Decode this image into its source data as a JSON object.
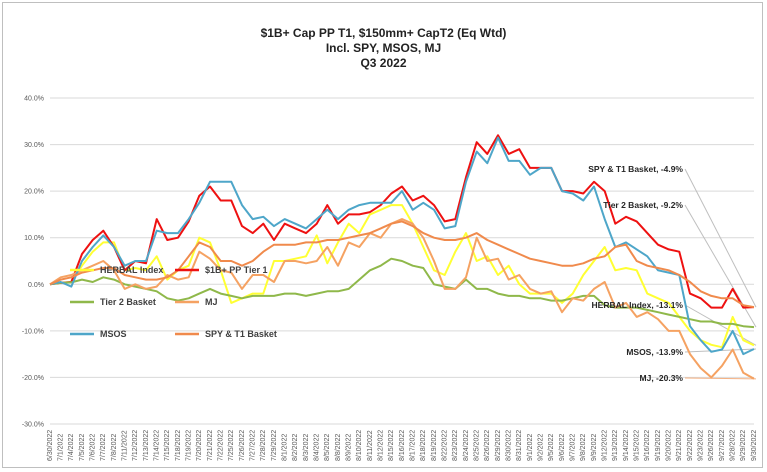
{
  "chart_data": {
    "type": "line",
    "title_lines": [
      "$1B+ Cap PP T1, $150mm+ CapT2  (Eq Wtd)",
      "Incl. SPY, MSOS, MJ",
      "Q3 2022"
    ],
    "ylim": [
      -30,
      40
    ],
    "y_ticks": [
      "-30.0%",
      "-20.0%",
      "-10.0%",
      "0.0%",
      "10.0%",
      "20.0%",
      "30.0%",
      "40.0%"
    ],
    "categories": [
      "6/30/2022",
      "7/1/2022",
      "7/4/2022",
      "7/5/2022",
      "7/6/2022",
      "7/7/2022",
      "7/8/2022",
      "7/11/2022",
      "7/12/2022",
      "7/13/2022",
      "7/14/2022",
      "7/15/2022",
      "7/18/2022",
      "7/19/2022",
      "7/20/2022",
      "7/21/2022",
      "7/22/2022",
      "7/25/2022",
      "7/26/2022",
      "7/27/2022",
      "7/28/2022",
      "7/29/2022",
      "8/1/2022",
      "8/2/2022",
      "8/3/2022",
      "8/4/2022",
      "8/5/2022",
      "8/8/2022",
      "8/9/2022",
      "8/10/2022",
      "8/11/2022",
      "8/12/2022",
      "8/15/2022",
      "8/16/2022",
      "8/17/2022",
      "8/18/2022",
      "8/19/2022",
      "8/22/2022",
      "8/23/2022",
      "8/24/2022",
      "8/25/2022",
      "8/26/2022",
      "8/29/2022",
      "8/30/2022",
      "8/31/2022",
      "9/1/2022",
      "9/2/2022",
      "9/5/2022",
      "9/6/2022",
      "9/7/2022",
      "9/8/2022",
      "9/9/2022",
      "9/12/2022",
      "9/13/2022",
      "9/14/2022",
      "9/15/2022",
      "9/16/2022",
      "9/19/2022",
      "9/20/2022",
      "9/21/2022",
      "9/22/2022",
      "9/23/2022",
      "9/26/2022",
      "9/27/2022",
      "9/28/2022",
      "9/29/2022",
      "9/30/2022"
    ],
    "series": [
      {
        "name": "HERBAL Index",
        "color": "#ffff33",
        "values": [
          0,
          0.3,
          0.5,
          4,
          7,
          9,
          9,
          3,
          3.5,
          3,
          6,
          1,
          3,
          4,
          10,
          9,
          3,
          -4,
          -3,
          -2,
          -2,
          5,
          5,
          5.5,
          6,
          10.5,
          4.5,
          9,
          13,
          11,
          15,
          16,
          17,
          17,
          13,
          8,
          3,
          2,
          7,
          11,
          5,
          6,
          2,
          4,
          0,
          -2,
          -2,
          -2,
          -4,
          -2,
          2,
          5,
          8,
          3,
          3.5,
          3,
          -2,
          -3,
          -4,
          -7,
          -10,
          -12,
          -13,
          -13.5,
          -7,
          -12,
          -13.1
        ]
      },
      {
        "name": "$1B+ PP Tier 1",
        "color": "#ee1111",
        "values": [
          0,
          0.3,
          0.5,
          6.5,
          9.5,
          11.5,
          8,
          3,
          5,
          4.5,
          14,
          9.5,
          10,
          13.5,
          19,
          21,
          18,
          18,
          12.5,
          11,
          13,
          9.5,
          13,
          12,
          11,
          13,
          17,
          13,
          15,
          15,
          15.5,
          17,
          19.5,
          21,
          18,
          19,
          17,
          13.5,
          14,
          23,
          30.5,
          28,
          32,
          28,
          29,
          25,
          25,
          25,
          20,
          20,
          19.5,
          22,
          20,
          13,
          14.5,
          13.5,
          11,
          8.5,
          7.5,
          7,
          -2,
          -3,
          -5,
          -5,
          -1,
          -5,
          -4.9
        ]
      },
      {
        "name": "Tier 2 Basket",
        "color": "#8fb84a",
        "values": [
          0,
          0.3,
          0.4,
          1,
          0.5,
          1.5,
          1,
          0,
          -0.5,
          -1,
          -1.5,
          -3,
          -3.5,
          -3,
          -2,
          -1,
          -2,
          -2.5,
          -3,
          -2.5,
          -2.5,
          -2.5,
          -2,
          -2,
          -2.5,
          -2,
          -1.5,
          -1.5,
          -1,
          1,
          3,
          4,
          5.5,
          5,
          4,
          3.5,
          0,
          -0.5,
          -1,
          1,
          -1,
          -1,
          -2,
          -2.5,
          -2.5,
          -3,
          -3,
          -3.5,
          -3.5,
          -3,
          -2.5,
          -2.5,
          -4.5,
          -5,
          -5,
          -5,
          -5.5,
          -6,
          -6.5,
          -7,
          -7.5,
          -8,
          -8,
          -8.5,
          -8.5,
          -9,
          -9.2
        ]
      },
      {
        "name": "MJ",
        "color": "#f5a262",
        "values": [
          0,
          1.5,
          2,
          3,
          4,
          5,
          3,
          -1,
          0,
          -1,
          -0.5,
          2,
          1,
          1.5,
          7,
          5.5,
          3,
          2.5,
          -1,
          2,
          2,
          0.5,
          5,
          5,
          4.5,
          5,
          8,
          4,
          9,
          8,
          11,
          10,
          13,
          14,
          13,
          10,
          5,
          -1,
          -1,
          1.5,
          10,
          5,
          5.5,
          1,
          2,
          -1,
          -2,
          -1.5,
          -6,
          -3,
          -3.5,
          -1,
          0.5,
          -5,
          -4,
          -7,
          -6,
          -7.5,
          -10,
          -10,
          -15,
          -18,
          -20,
          -17.5,
          -14,
          -19,
          -20.3
        ]
      },
      {
        "name": "MSOS",
        "color": "#4ea6c9",
        "values": [
          0,
          0.5,
          -0.5,
          5,
          8,
          10.5,
          8,
          4,
          5,
          5,
          11.5,
          11,
          11,
          14,
          17.5,
          22,
          22,
          22,
          17,
          14,
          14.5,
          12.5,
          14,
          13,
          12,
          14,
          16,
          14,
          16,
          17,
          17.5,
          17.5,
          17.5,
          20,
          16,
          17.5,
          16,
          12,
          12.5,
          22,
          28.5,
          26,
          31.5,
          26.5,
          26.5,
          23.5,
          25,
          25,
          20,
          19.5,
          18,
          21,
          14,
          8,
          9,
          7.5,
          6,
          3,
          2.5,
          2,
          -9,
          -12,
          -14.5,
          -14,
          -10,
          -15,
          -13.9
        ]
      },
      {
        "name": "SPY & T1 Basket",
        "color": "#f08a4c",
        "values": [
          0,
          1,
          1.5,
          2.5,
          3,
          3.5,
          3.5,
          2,
          1.5,
          1,
          1,
          1.5,
          3,
          6,
          9,
          8,
          5,
          5,
          4,
          5,
          7,
          8.5,
          8.5,
          8.5,
          9,
          9,
          9.5,
          9.5,
          10,
          10.5,
          11,
          12,
          13,
          13.5,
          12.5,
          11,
          10,
          9.5,
          9.5,
          10,
          11,
          9.5,
          8.5,
          7.5,
          6.5,
          5.5,
          5,
          4.5,
          4,
          4,
          4.5,
          5.5,
          6,
          8,
          8.5,
          5,
          4,
          3.5,
          3,
          2,
          0.5,
          -1.5,
          -2.5,
          -3,
          -3,
          -4.5,
          -4.9
        ]
      }
    ],
    "legend": [
      {
        "label": "HERBAL Index",
        "color": "#ffff33"
      },
      {
        "label": "$1B+ PP Tier 1",
        "color": "#ee1111"
      },
      {
        "label": "Tier 2 Basket",
        "color": "#8fb84a"
      },
      {
        "label": "MJ",
        "color": "#f5a262"
      },
      {
        "label": "MSOS",
        "color": "#4ea6c9"
      },
      {
        "label": "SPY & T1 Basket",
        "color": "#f08a4c"
      }
    ],
    "annotations": [
      {
        "label": "SPY & T1 Basket, -4.9%",
        "value": -4.9
      },
      {
        "label": "Tier 2 Basket, -9.2%",
        "value": -9.2
      },
      {
        "label": "HERBAL Index, -13.1%",
        "value": -13.1
      },
      {
        "label": "MSOS, -13.9%",
        "value": -13.9
      },
      {
        "label": "MJ, -20.3%",
        "value": -20.3
      }
    ]
  }
}
